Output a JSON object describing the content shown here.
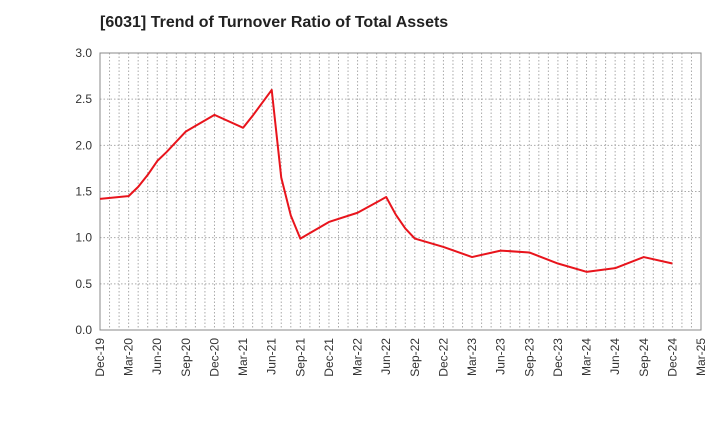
{
  "chart_data": {
    "type": "line",
    "title": "[6031]  Trend of Turnover Ratio of Total Assets",
    "xlabel": "",
    "ylabel": "",
    "ylim": [
      0,
      3.0
    ],
    "y_ticks": [
      "0.0",
      "0.5",
      "1.0",
      "1.5",
      "2.0",
      "2.5",
      "3.0"
    ],
    "x_ticks": [
      "Dec-19",
      "Mar-20",
      "Jun-20",
      "Sep-20",
      "Dec-20",
      "Mar-21",
      "Jun-21",
      "Sep-21",
      "Dec-21",
      "Mar-22",
      "Jun-22",
      "Sep-22",
      "Dec-22",
      "Mar-23",
      "Jun-23",
      "Sep-23",
      "Dec-23",
      "Mar-24",
      "Jun-24",
      "Sep-24",
      "Dec-24",
      "Mar-25"
    ],
    "grid": true,
    "series": [
      {
        "color": "#e8141c",
        "points": [
          {
            "x": "Dec-19",
            "y": 1.42
          },
          {
            "x": "Mar-20",
            "y": 1.45
          },
          {
            "x": "Apr-20",
            "y": 1.55
          },
          {
            "x": "May-20",
            "y": 1.68
          },
          {
            "x": "Jun-20",
            "y": 1.83
          },
          {
            "x": "Jul-20",
            "y": 1.93
          },
          {
            "x": "Sep-20",
            "y": 2.15
          },
          {
            "x": "Dec-20",
            "y": 2.33
          },
          {
            "x": "Mar-21",
            "y": 2.19
          },
          {
            "x": "Apr-21",
            "y": 2.32
          },
          {
            "x": "Jun-21",
            "y": 2.6
          },
          {
            "x": "Jul-21",
            "y": 1.65
          },
          {
            "x": "Aug-21",
            "y": 1.24
          },
          {
            "x": "Sep-21",
            "y": 0.99
          },
          {
            "x": "Dec-21",
            "y": 1.17
          },
          {
            "x": "Mar-22",
            "y": 1.27
          },
          {
            "x": "Jun-22",
            "y": 1.44
          },
          {
            "x": "Jul-22",
            "y": 1.25
          },
          {
            "x": "Aug-22",
            "y": 1.1
          },
          {
            "x": "Sep-22",
            "y": 0.99
          },
          {
            "x": "Dec-22",
            "y": 0.9
          },
          {
            "x": "Mar-23",
            "y": 0.79
          },
          {
            "x": "Jun-23",
            "y": 0.86
          },
          {
            "x": "Sep-23",
            "y": 0.84
          },
          {
            "x": "Dec-23",
            "y": 0.72
          },
          {
            "x": "Mar-24",
            "y": 0.63
          },
          {
            "x": "Jun-24",
            "y": 0.67
          },
          {
            "x": "Sep-24",
            "y": 0.79
          },
          {
            "x": "Dec-24",
            "y": 0.72
          }
        ]
      }
    ]
  }
}
